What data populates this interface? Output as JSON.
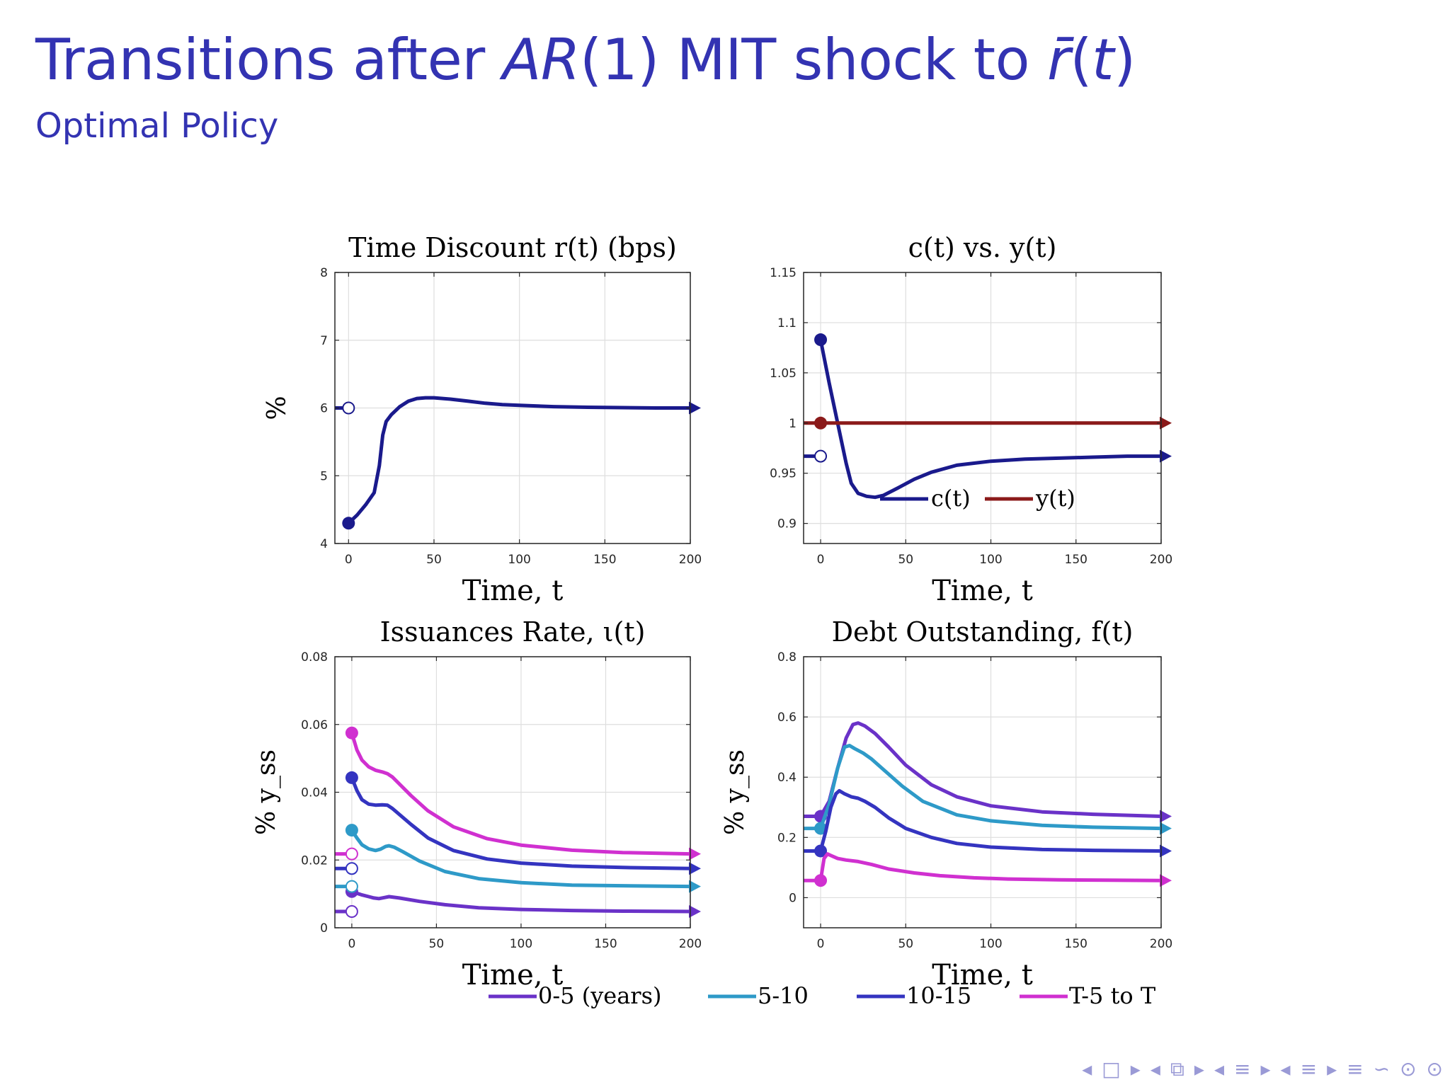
{
  "slide": {
    "title_pre": "Transitions after ",
    "title_it1": "AR",
    "title_mid": "(1) MIT shock to ",
    "title_it2": "r̄",
    "title_paren_open": "(",
    "title_it3": "t",
    "title_paren_close": ")",
    "subtitle": "Optimal Policy"
  },
  "colors": {
    "navy": "#1a1a8c",
    "red": "#8b1a1a",
    "purple": "#6a32c8",
    "teal": "#2e9ac8",
    "blue": "#3434c0",
    "magenta": "#d030d0",
    "grid": "#dedede"
  },
  "legend_bottom": [
    "0-5 (years)",
    "5-10",
    "10-15",
    "T-5 to T"
  ],
  "nav_icons": [
    "◂",
    "□",
    "▸",
    "◂",
    "⧉",
    "▸",
    "◂",
    "≡",
    "▸",
    "◂",
    "≡",
    "▸",
    "≡",
    "∽",
    "⊙",
    "⊙"
  ],
  "chart_data": [
    {
      "id": "r",
      "type": "line",
      "title": "Time Discount r(t) (bps)",
      "xlabel": "Time, t",
      "ylabel": "%",
      "xlim": [
        -8,
        200
      ],
      "ylim": [
        4,
        8
      ],
      "xticks": [
        0,
        50,
        100,
        150,
        200
      ],
      "yticks": [
        4,
        5,
        6,
        7,
        8
      ],
      "ytick_labels": [
        "4",
        "5",
        "6",
        "7",
        "8"
      ],
      "grid": true,
      "series": [
        {
          "color_key": "navy",
          "ss": 6.0,
          "start": 4.3,
          "x": [
            0,
            5,
            10,
            15,
            18,
            20,
            22,
            25,
            30,
            35,
            40,
            45,
            50,
            60,
            70,
            80,
            90,
            100,
            120,
            140,
            160,
            180,
            200
          ],
          "y": [
            4.3,
            4.42,
            4.57,
            4.75,
            5.15,
            5.6,
            5.8,
            5.9,
            6.02,
            6.1,
            6.14,
            6.15,
            6.15,
            6.13,
            6.1,
            6.07,
            6.05,
            6.04,
            6.02,
            6.01,
            6.005,
            6.0,
            6.0
          ]
        }
      ]
    },
    {
      "id": "cy",
      "type": "line",
      "title": "c(t) vs. y(t)",
      "xlabel": "Time, t",
      "ylabel": "",
      "xlim": [
        -10,
        200
      ],
      "ylim": [
        0.88,
        1.15
      ],
      "xticks": [
        0,
        50,
        100,
        150,
        200
      ],
      "yticks": [
        0.9,
        0.95,
        1.0,
        1.05,
        1.1,
        1.15
      ],
      "ytick_labels": [
        "0.9",
        "0.95",
        "1",
        "1.05",
        "1.1",
        "1.15"
      ],
      "grid": true,
      "legend": [
        "c(t)",
        "y(t)"
      ],
      "series": [
        {
          "name": "c(t)",
          "color_key": "navy",
          "ss": 0.967,
          "start": 1.083,
          "x": [
            0,
            5,
            10,
            15,
            18,
            22,
            27,
            32,
            37,
            45,
            55,
            65,
            80,
            100,
            120,
            140,
            160,
            180,
            200
          ],
          "y": [
            1.083,
            1.04,
            1.0,
            0.96,
            0.94,
            0.93,
            0.927,
            0.926,
            0.928,
            0.935,
            0.944,
            0.951,
            0.958,
            0.962,
            0.964,
            0.965,
            0.966,
            0.967,
            0.967
          ]
        },
        {
          "name": "y(t)",
          "color_key": "red",
          "ss": 1.0,
          "start": 1.0,
          "x": [
            0,
            200
          ],
          "y": [
            1.0,
            1.0
          ]
        }
      ]
    },
    {
      "id": "iota",
      "type": "line",
      "title": "Issuances Rate, ι(t)",
      "xlabel": "Time, t",
      "ylabel": "% y_ss",
      "xlim": [
        -10,
        200
      ],
      "ylim": [
        0,
        0.08
      ],
      "xticks": [
        0,
        50,
        100,
        150,
        200
      ],
      "yticks": [
        0,
        0.02,
        0.04,
        0.06,
        0.08
      ],
      "ytick_labels": [
        "0",
        "0.02",
        "0.04",
        "0.06",
        "0.08"
      ],
      "grid": true,
      "series": [
        {
          "name": "0-5 (years)",
          "color_key": "purple",
          "ss": 0.0048,
          "start": 0.0107,
          "x": [
            0,
            3,
            6,
            10,
            13,
            16,
            19,
            22,
            28,
            40,
            55,
            75,
            100,
            130,
            160,
            200
          ],
          "y": [
            0.0107,
            0.0102,
            0.0097,
            0.0092,
            0.0088,
            0.0086,
            0.0089,
            0.0092,
            0.0088,
            0.0078,
            0.0068,
            0.0059,
            0.0054,
            0.0051,
            0.0049,
            0.0048
          ]
        },
        {
          "name": "5-10",
          "color_key": "teal",
          "ss": 0.0122,
          "start": 0.0288,
          "x": [
            0,
            3,
            6,
            10,
            14,
            17,
            20,
            22,
            25,
            30,
            40,
            55,
            75,
            100,
            130,
            160,
            200
          ],
          "y": [
            0.0288,
            0.0265,
            0.0245,
            0.0233,
            0.0228,
            0.0232,
            0.024,
            0.0242,
            0.0238,
            0.0225,
            0.0197,
            0.0166,
            0.0145,
            0.0133,
            0.0126,
            0.0124,
            0.0122
          ]
        },
        {
          "name": "10-15",
          "color_key": "blue",
          "ss": 0.0175,
          "start": 0.0443,
          "x": [
            0,
            3,
            6,
            10,
            14,
            18,
            21,
            24,
            28,
            35,
            45,
            60,
            80,
            100,
            130,
            160,
            200
          ],
          "y": [
            0.0443,
            0.0405,
            0.0378,
            0.0365,
            0.0362,
            0.0363,
            0.0362,
            0.0352,
            0.0335,
            0.0305,
            0.0265,
            0.0228,
            0.0203,
            0.0191,
            0.0182,
            0.0178,
            0.0175
          ]
        },
        {
          "name": "T-5 to T",
          "color_key": "magenta",
          "ss": 0.0218,
          "start": 0.0575,
          "x": [
            0,
            3,
            6,
            10,
            14,
            18,
            21,
            24,
            28,
            35,
            45,
            60,
            80,
            100,
            130,
            160,
            200
          ],
          "y": [
            0.0575,
            0.0525,
            0.0495,
            0.0475,
            0.0465,
            0.046,
            0.0455,
            0.0445,
            0.0425,
            0.039,
            0.0345,
            0.0298,
            0.0263,
            0.0244,
            0.0229,
            0.0222,
            0.0218
          ]
        }
      ]
    },
    {
      "id": "f",
      "type": "line",
      "title": "Debt Outstanding, f(t)",
      "xlabel": "Time, t",
      "ylabel": "% y_ss",
      "xlim": [
        -10,
        200
      ],
      "ylim": [
        -0.1,
        0.8
      ],
      "xticks": [
        0,
        50,
        100,
        150,
        200
      ],
      "yticks": [
        0,
        0.2,
        0.4,
        0.6,
        0.8
      ],
      "ytick_labels": [
        "0",
        "0.2",
        "0.4",
        "0.6",
        "0.8"
      ],
      "grid": true,
      "series": [
        {
          "name": "0-5 (years)",
          "color_key": "purple",
          "ss": 0.27,
          "start": 0.27,
          "x": [
            0,
            5,
            10,
            15,
            19,
            22,
            26,
            32,
            40,
            50,
            65,
            80,
            100,
            130,
            160,
            200
          ],
          "y": [
            0.27,
            0.32,
            0.43,
            0.53,
            0.575,
            0.58,
            0.57,
            0.545,
            0.5,
            0.44,
            0.375,
            0.335,
            0.305,
            0.285,
            0.277,
            0.27
          ]
        },
        {
          "name": "5-10",
          "color_key": "teal",
          "ss": 0.23,
          "start": 0.23,
          "x": [
            0,
            5,
            10,
            14,
            17,
            20,
            25,
            30,
            38,
            48,
            60,
            80,
            100,
            130,
            160,
            200
          ],
          "y": [
            0.23,
            0.31,
            0.43,
            0.5,
            0.505,
            0.495,
            0.48,
            0.46,
            0.42,
            0.37,
            0.32,
            0.275,
            0.255,
            0.24,
            0.234,
            0.23
          ]
        },
        {
          "name": "10-15",
          "color_key": "blue",
          "ss": 0.155,
          "start": 0.155,
          "x": [
            0,
            3,
            6,
            9,
            11,
            14,
            18,
            22,
            26,
            32,
            40,
            50,
            65,
            80,
            100,
            130,
            160,
            200
          ],
          "y": [
            0.155,
            0.22,
            0.3,
            0.345,
            0.355,
            0.345,
            0.335,
            0.33,
            0.32,
            0.3,
            0.265,
            0.23,
            0.2,
            0.18,
            0.168,
            0.16,
            0.157,
            0.155
          ]
        },
        {
          "name": "T-5 to T",
          "color_key": "magenta",
          "ss": 0.057,
          "start": 0.057,
          "x": [
            0,
            2,
            4,
            6,
            10,
            15,
            22,
            30,
            40,
            55,
            70,
            90,
            110,
            140,
            170,
            200
          ],
          "y": [
            0.057,
            0.13,
            0.145,
            0.14,
            0.13,
            0.125,
            0.12,
            0.11,
            0.095,
            0.082,
            0.073,
            0.066,
            0.062,
            0.059,
            0.058,
            0.057
          ]
        }
      ]
    }
  ]
}
